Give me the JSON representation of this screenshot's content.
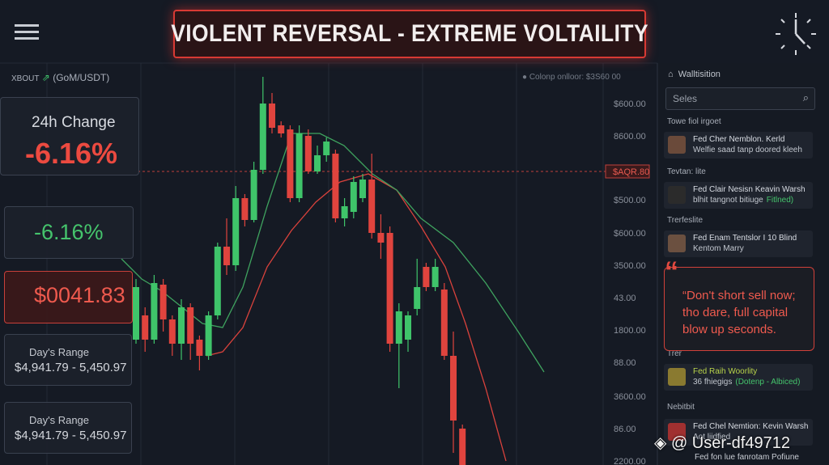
{
  "header": {
    "title": "VIOLENT REVERSAL - EXTREME VOLTAILITY"
  },
  "chart": {
    "type": "candlestick",
    "symbol": "XBOUT",
    "pair": "(GoM/USDT)",
    "top_info": "Colonp onlloor: $3S60 00",
    "price_marker": "$AQR.80",
    "price_labels": [
      "$600.00",
      "8600.00",
      "$500.00",
      "$600.00",
      "3500.00",
      "43.00",
      "1800.00",
      "88.00",
      "3600.00",
      "86.00",
      "2200.00"
    ],
    "ylim": [
      0,
      497
    ],
    "colors": {
      "up": "#3fc46a",
      "down": "#e0443e"
    },
    "candles": [
      {
        "open": 155,
        "close": 220,
        "high": 230,
        "low": 150
      },
      {
        "open": 185,
        "close": 155,
        "high": 195,
        "low": 140
      },
      {
        "open": 155,
        "close": 225,
        "high": 235,
        "low": 150
      },
      {
        "open": 223,
        "close": 180,
        "high": 230,
        "low": 165
      },
      {
        "open": 180,
        "close": 150,
        "high": 185,
        "low": 135
      },
      {
        "open": 150,
        "close": 195,
        "high": 205,
        "low": 130
      },
      {
        "open": 195,
        "close": 150,
        "high": 200,
        "low": 130
      },
      {
        "open": 155,
        "close": 135,
        "high": 160,
        "low": 117
      },
      {
        "open": 135,
        "close": 185,
        "high": 190,
        "low": 130
      },
      {
        "open": 185,
        "close": 270,
        "high": 275,
        "low": 180
      },
      {
        "open": 270,
        "close": 247,
        "high": 305,
        "low": 235
      },
      {
        "open": 247,
        "close": 330,
        "high": 345,
        "low": 240
      },
      {
        "open": 330,
        "close": 303,
        "high": 335,
        "low": 295
      },
      {
        "open": 303,
        "close": 365,
        "high": 375,
        "low": 300
      },
      {
        "open": 365,
        "close": 447,
        "high": 480,
        "low": 360
      },
      {
        "open": 447,
        "close": 417,
        "high": 460,
        "low": 410
      },
      {
        "open": 420,
        "close": 410,
        "high": 425,
        "low": 405
      },
      {
        "open": 415,
        "close": 330,
        "high": 420,
        "low": 325
      },
      {
        "open": 330,
        "close": 410,
        "high": 420,
        "low": 325
      },
      {
        "open": 407,
        "close": 363,
        "high": 415,
        "low": 360
      },
      {
        "open": 363,
        "close": 383,
        "high": 395,
        "low": 360
      },
      {
        "open": 383,
        "close": 400,
        "high": 405,
        "low": 375
      },
      {
        "open": 385,
        "close": 305,
        "high": 390,
        "low": 300
      },
      {
        "open": 305,
        "close": 320,
        "high": 330,
        "low": 295
      },
      {
        "open": 313,
        "close": 350,
        "high": 357,
        "low": 305
      },
      {
        "open": 330,
        "close": 353,
        "high": 360,
        "low": 325
      },
      {
        "open": 353,
        "close": 287,
        "high": 385,
        "low": 280
      },
      {
        "open": 287,
        "close": 275,
        "high": 310,
        "low": 255
      },
      {
        "open": 287,
        "close": 150,
        "high": 295,
        "low": 140
      },
      {
        "open": 150,
        "close": 190,
        "high": 200,
        "low": 95
      },
      {
        "open": 155,
        "close": 185,
        "high": 190,
        "low": 140
      },
      {
        "open": 193,
        "close": 220,
        "high": 255,
        "low": 185
      },
      {
        "open": 245,
        "close": 220,
        "high": 250,
        "low": 215
      },
      {
        "open": 220,
        "close": 245,
        "high": 255,
        "low": 215
      },
      {
        "open": 217,
        "close": 135,
        "high": 225,
        "low": 130
      },
      {
        "open": 135,
        "close": 55,
        "high": 165,
        "low": 15
      },
      {
        "open": 45,
        "close": 0,
        "high": 50,
        "low": 0
      }
    ]
  },
  "stats": {
    "change_label": "24h Change",
    "change_value": "-6.16%",
    "change_value_2": "-6.16%",
    "price": "$0041.83",
    "ranges": [
      {
        "label": "Day's Range",
        "value": "$4,941.79 - 5,450.97"
      },
      {
        "label": "Day's Range",
        "value": "$4,941.79 - 5,450.97"
      }
    ]
  },
  "sidebar": {
    "title": "Walltisition",
    "search": "Seles",
    "sections": [
      {
        "heading": "Towe fiol irgoet",
        "line1": "Fed Cher Nemblon. Kerld",
        "line2": "Welfie saad tanp doored kleeh"
      },
      {
        "heading": "Tevtan: lite",
        "line1": "Fed Clair Nesisn Keavin Warsh",
        "line2": "blhit tangnot bitiuge",
        "tag": "Fitlned)"
      },
      {
        "heading": "Trerfeslite",
        "line1": "Fed Enam Tentslor I 10 Blind",
        "line2": "Kentom Marry"
      },
      {
        "heading": "Trer",
        "line1": "Fed Raih Woorlity",
        "line2": "36 fhiegigs",
        "tag": "(Dotenp - Albiced)"
      },
      {
        "heading": "Nebitbit",
        "line1": "Fed Chel Nemtion: Kevin Warsh",
        "line2": "Aot liidfied"
      }
    ],
    "quote": "“Don't short sell now; tho dare, full capital blow up seconds.",
    "footer_item": "Fed fon lue fanrotam Pofiune"
  },
  "watermark": "@ User-df49712"
}
